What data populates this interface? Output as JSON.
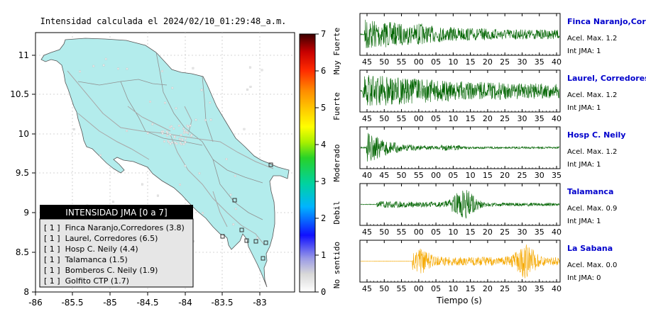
{
  "map": {
    "title": "Intensidad calculada el 2024/02/10_01:29:48_a.m.",
    "x_ticks": [
      "-86",
      "-85.5",
      "-85",
      "-84.5",
      "-84",
      "-83.5",
      "-83"
    ],
    "y_ticks": [
      "11",
      "10.5",
      "10",
      "9.5",
      "9",
      "8.5",
      "8"
    ],
    "colorbar": {
      "ticks": [
        "0",
        "1",
        "2",
        "3",
        "4",
        "5",
        "6",
        "7"
      ],
      "classes": [
        "No sentido",
        "Debil",
        "Moderado",
        "Fuerte",
        "Muy Fuerte"
      ]
    },
    "legend": {
      "title": "INTENSIDAD JMA [0 a 7]",
      "items": [
        "[ 1 ]  Finca Naranjo,Corredores (3.8)",
        "[ 1 ]  Laurel, Corredores (6.5)",
        "[ 1 ]  Hosp C. Neily (4.4)",
        "[ 1 ]  Talamanca (1.5)",
        "[ 1 ]  Bomberos C. Neily (1.9)",
        "[ 1 ]  Golfito CTP (1.7)"
      ]
    }
  },
  "stations": [
    {
      "name": "Finca Naranjo,Corredores",
      "acel": "Acel. Max. 1.2",
      "int": "Int JMA: 1",
      "ticks": [
        "45",
        "50",
        "55",
        "00",
        "05",
        "10",
        "15",
        "20",
        "25",
        "30",
        "35",
        "40"
      ]
    },
    {
      "name": "Laurel, Corredores",
      "acel": "Acel. Max. 1.2",
      "int": "Int JMA: 1",
      "ticks": [
        "45",
        "50",
        "55",
        "00",
        "05",
        "10",
        "15",
        "20",
        "25",
        "30",
        "35",
        "40"
      ]
    },
    {
      "name": "Hosp C. Neily",
      "acel": "Acel. Max. 1.2",
      "int": "Int JMA: 1",
      "ticks": [
        "40",
        "45",
        "50",
        "55",
        "00",
        "05",
        "10",
        "15",
        "20",
        "25",
        "30",
        "35"
      ]
    },
    {
      "name": "Talamanca",
      "acel": "Acel. Max. 0.9",
      "int": "Int JMA: 1",
      "ticks": [
        "45",
        "50",
        "55",
        "00",
        "05",
        "10",
        "15",
        "20",
        "25",
        "30",
        "35",
        "40"
      ]
    },
    {
      "name": "La Sabana",
      "acel": "Acel. Max. 0.0",
      "int": "Int JMA: 0",
      "ticks": [
        "45",
        "50",
        "55",
        "00",
        "05",
        "10",
        "15",
        "20",
        "25",
        "30",
        "35",
        "40"
      ]
    }
  ],
  "xlabel": "Tiempo (s)",
  "colors": {
    "land": "#b3ecec",
    "trace_green": "#006400",
    "trace_orange": "#f5a800",
    "station_link": "#0000cc"
  }
}
